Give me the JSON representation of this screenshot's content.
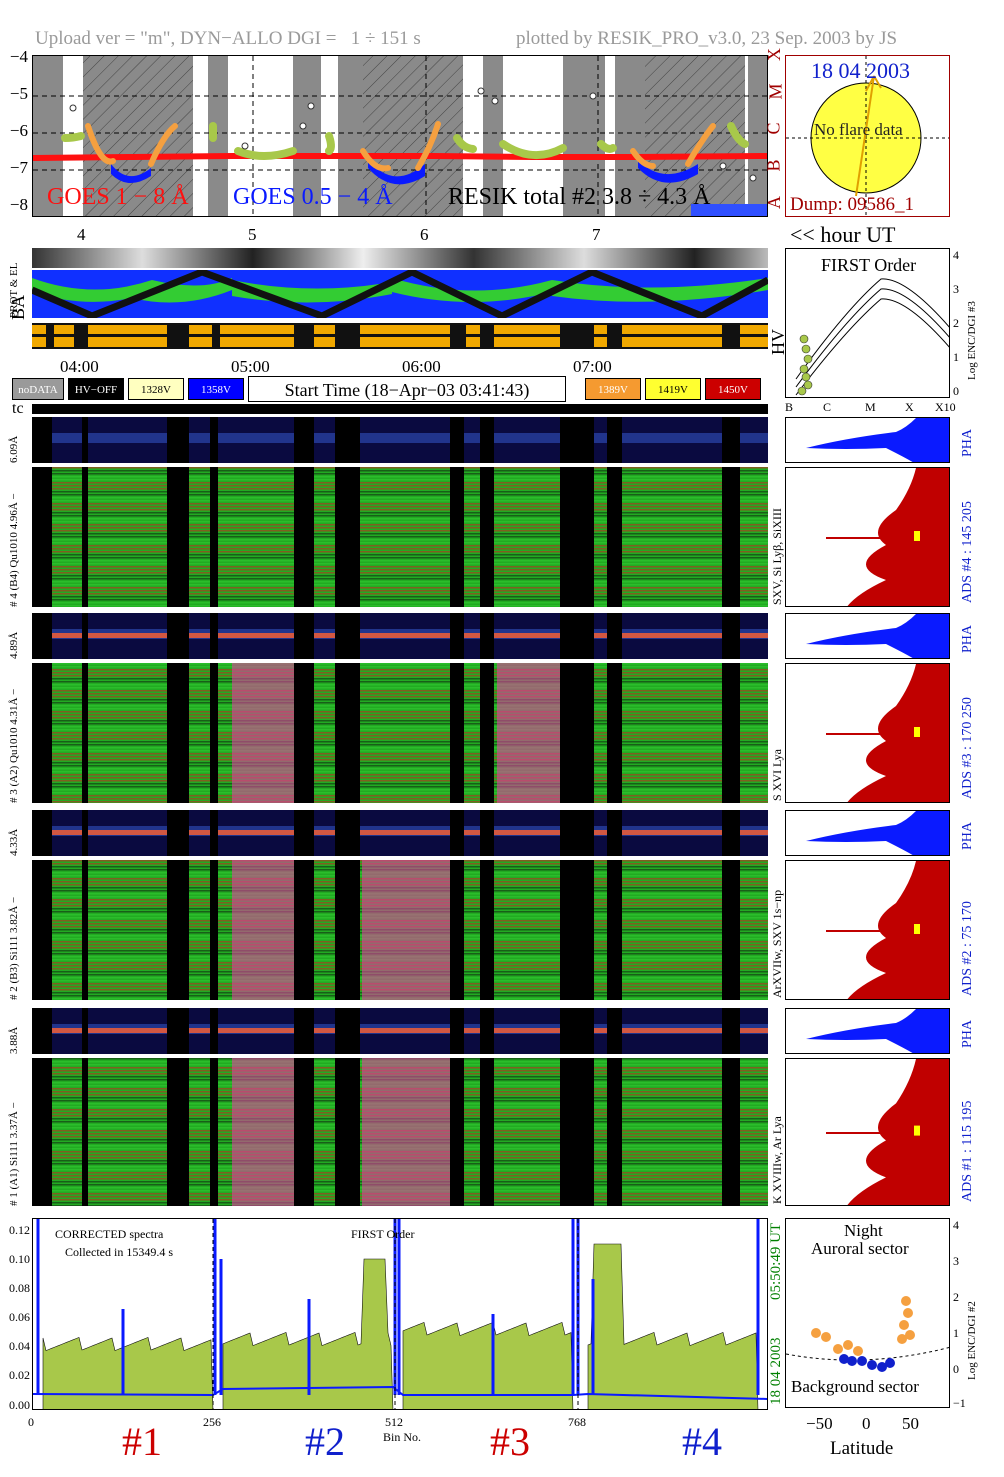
{
  "header": {
    "left": "Upload ver = \"m\", DYN−ALLO DGI =   1 ÷ 151 s",
    "right": "plotted by RESIK_PRO_v3.0, 23 Sep. 2003 by JS"
  },
  "goes": {
    "y_ticks": [
      "−4",
      "−5",
      "−6",
      "−7",
      "−8"
    ],
    "class_letters": [
      "X",
      "M",
      "C",
      "B",
      "A"
    ],
    "label_goes18": "GOES 1 − 8 Å",
    "label_goes054": "GOES 0.5 − 4 Å",
    "label_resik": "RESIK total #2  3.8 ÷ 4.3 Å",
    "hour_ticks": [
      "4",
      "5",
      "6",
      "7"
    ],
    "hour_axis_label": "<< hour UT"
  },
  "sun": {
    "date": "18 04 2003",
    "flare_text": "No flare data",
    "dump": "Dump: 09586_1"
  },
  "orbit": {
    "label_prot": "PROT & EL",
    "label_ba": "BA",
    "label_hv": "HV",
    "time_ticks": [
      "04:00",
      "05:00",
      "06:00",
      "07:00"
    ]
  },
  "legend": {
    "nodata": "noDATA",
    "hvoff": "HV−OFF",
    "v328": "1328V",
    "v358": "1358V",
    "start_time": "Start Time (18−Apr−03 03:41:43)",
    "v389": "1389V",
    "v419": "1419V",
    "v450": "1450V",
    "tc": "tc"
  },
  "colors": {
    "goes18": "#ff1010",
    "goes054": "#0a1aff",
    "resik": "#a8c84a",
    "ads": "#c00000",
    "pha": "#0a1aff",
    "spectrum_fill": "#a8c84a",
    "orange": "#f5a040",
    "yellow_sun": "#ffff44",
    "v328": "#ffffc0",
    "v358": "#0000ff",
    "v389": "#f59a30",
    "v419": "#ffff30",
    "v450": "#cc0000",
    "night_text": "#000000",
    "date_blue": "#1020cc",
    "dump_red": "#a00000",
    "date_green": "#008000"
  },
  "first_order": {
    "title": "FIRST Order",
    "x_ticks": [
      "B",
      "C",
      "M",
      "X",
      "X10"
    ],
    "y_ticks": [
      "0",
      "1",
      "2",
      "3",
      "4"
    ],
    "y_label": "Log ENC/DGI #3"
  },
  "detectors": [
    {
      "pha_label": "6.09Å",
      "main_label": "# 4 (B4) Qu1010 4.96Å −",
      "line_label": "SXV, Si Lyβ, SiXIII",
      "ads": "ADS #4 :  145 205",
      "pha": "PHA"
    },
    {
      "pha_label": "4.89Å",
      "main_label": "# 3 (A2) Qu1010 4.31Å −",
      "line_label": "S XVI Lya",
      "ads": "ADS #3 :  170 250",
      "pha": "PHA"
    },
    {
      "pha_label": "4.33Å",
      "main_label": "# 2 (B3) Si111 3.82Å −",
      "line_label": "ArXVIIw, SXV 1s−np",
      "ads": "ADS #2 :   75 170",
      "pha": "PHA"
    },
    {
      "pha_label": "3.88Å",
      "main_label": "# 1 (A1) Si111 3.37Å −",
      "line_label": "K XVIIIw, Ar Lya",
      "ads": "ADS #1 :  115 195",
      "pha": "PHA"
    }
  ],
  "spectrum": {
    "title": "CORRECTED spectra",
    "collected": "Collected in 15349.4 s",
    "order": "FIRST Order",
    "y_ticks": [
      "0.00",
      "0.02",
      "0.04",
      "0.06",
      "0.08",
      "0.10",
      "0.12"
    ],
    "x_ticks": [
      "0",
      "256",
      "512",
      "768"
    ],
    "x_label": "Bin No.",
    "timestamp_time": "05:50:49 UT",
    "timestamp_date": "18 04 2003",
    "channel_labels": [
      "#1",
      "#2",
      "#3",
      "#4"
    ]
  },
  "latitude": {
    "night": "Night",
    "auroral": "Auroral sector",
    "background": "Background sector",
    "x_label": "Latitude",
    "x_ticks": [
      "−50",
      "0",
      "50"
    ],
    "y_ticks": [
      "−1",
      "0",
      "1",
      "2",
      "3",
      "4"
    ],
    "y_label": "Log ENC/DGI #2"
  }
}
